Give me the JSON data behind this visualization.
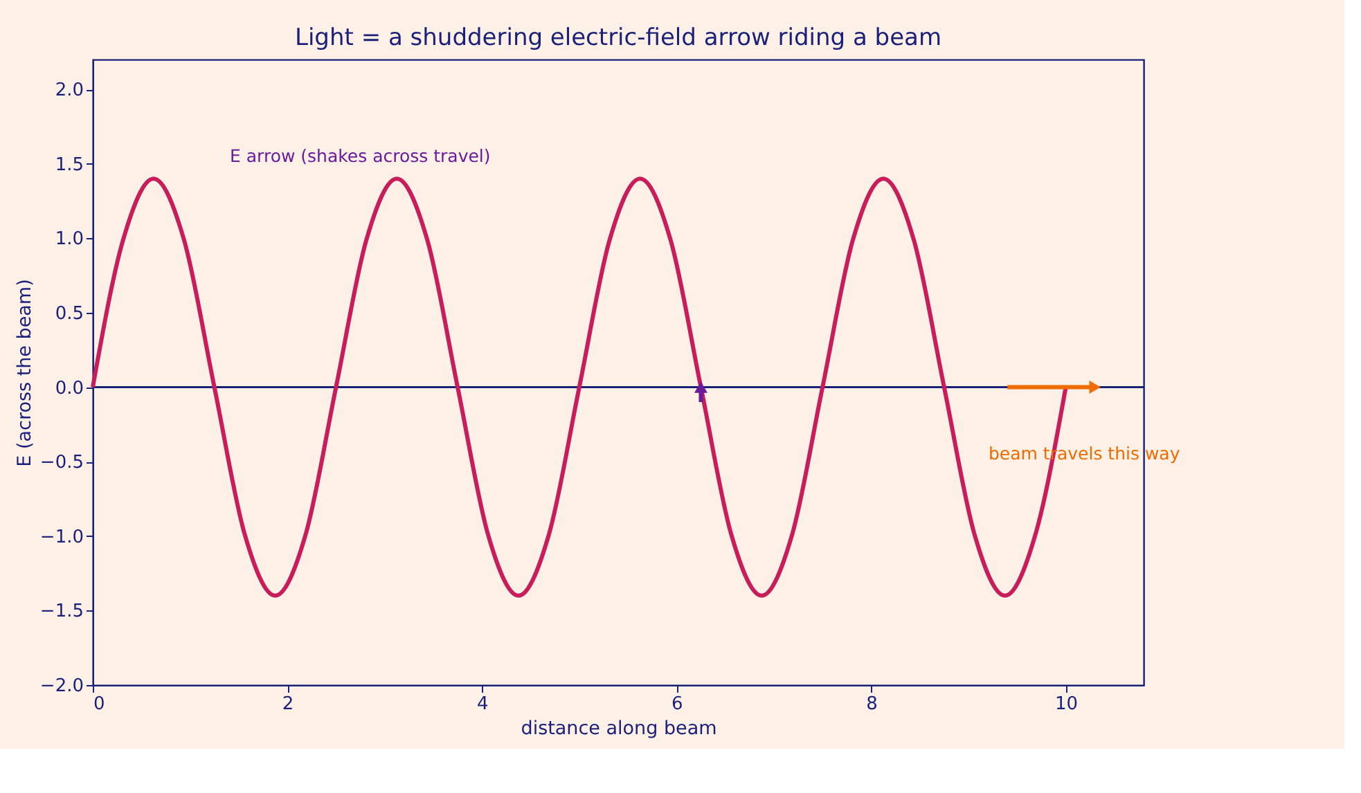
{
  "chart_data": {
    "type": "line",
    "title": "Light = a shuddering electric-field arrow riding a beam",
    "xlabel": "distance along beam",
    "ylabel": "E (across the beam)",
    "x": [
      0,
      0.3125,
      0.625,
      0.9375,
      1.25,
      1.5625,
      1.875,
      2.1875,
      2.5,
      2.8125,
      3.125,
      3.4375,
      3.75,
      4.0625,
      4.375,
      4.6875,
      5,
      5.3125,
      5.625,
      5.9375,
      6.25,
      6.5625,
      6.875,
      7.1875,
      7.5,
      7.8125,
      8.125,
      8.4375,
      8.75,
      9.0625,
      9.375,
      9.6875,
      10
    ],
    "series": [
      {
        "color": "#c81d5a",
        "values": [
          0,
          0.99,
          1.4,
          0.99,
          0,
          -0.99,
          -1.4,
          -0.99,
          0,
          0.99,
          1.4,
          0.99,
          0,
          -0.99,
          -1.4,
          -0.99,
          0,
          0.99,
          1.4,
          0.99,
          0,
          -0.99,
          -1.4,
          -0.99,
          0,
          0.99,
          1.4,
          0.99,
          0,
          -0.99,
          -1.4,
          -0.99,
          0
        ]
      }
    ],
    "xlim": [
      0,
      10.8
    ],
    "xticks": [
      0,
      2,
      4,
      6,
      8,
      10
    ],
    "ylim": [
      -2.0,
      2.2
    ],
    "yticks": [
      {
        "value": -2,
        "label": "−2.0"
      },
      {
        "value": -1.5,
        "label": "−1.5"
      },
      {
        "value": -1,
        "label": "−1.0"
      },
      {
        "value": -0.5,
        "label": "−0.5"
      },
      {
        "value": 0,
        "label": "0.0"
      },
      {
        "value": 0.5,
        "label": "0.5"
      },
      {
        "value": 1,
        "label": "1.0"
      },
      {
        "value": 1.5,
        "label": "1.5"
      },
      {
        "value": 2,
        "label": "2.0"
      }
    ],
    "ref_lines": [
      {
        "axis": "y",
        "value": 0,
        "color": "#1a1f7a"
      }
    ],
    "annotations": [
      "E arrow (shakes across travel)",
      "beam travels this way"
    ],
    "grid": false,
    "line_style": "solid",
    "marker": "none"
  }
}
